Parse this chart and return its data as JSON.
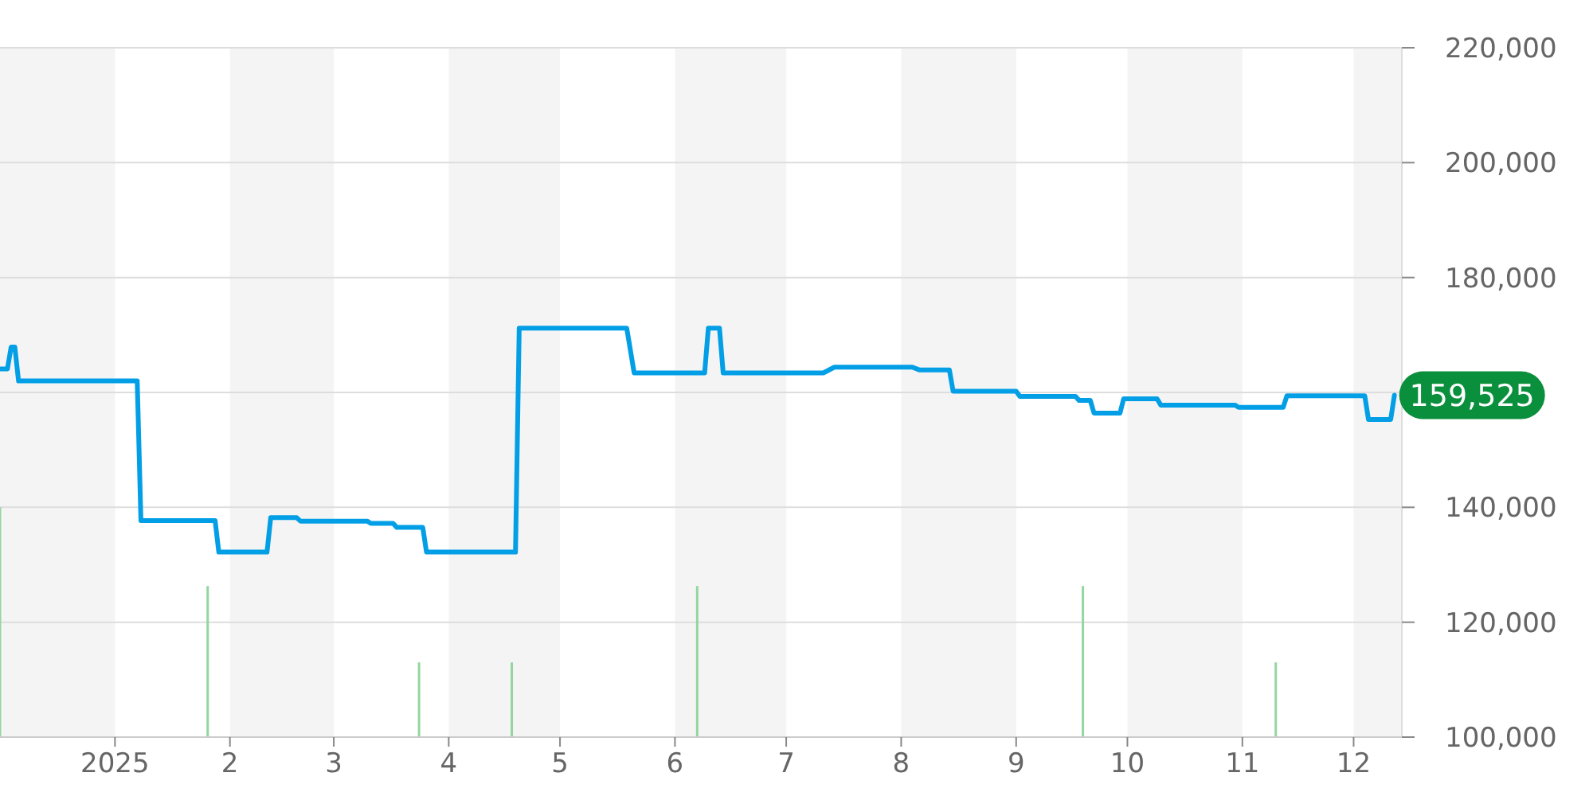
{
  "chart_data": {
    "type": "line",
    "xlim": [
      "2024-12-01",
      "2025-12-14"
    ],
    "ylim": [
      100000,
      220000
    ],
    "xticks": [
      {
        "value": "2025-01-01",
        "label": "2025"
      },
      {
        "value": "2025-02-01",
        "label": "2"
      },
      {
        "value": "2025-03-01",
        "label": "3"
      },
      {
        "value": "2025-04-01",
        "label": "4"
      },
      {
        "value": "2025-05-01",
        "label": "5"
      },
      {
        "value": "2025-06-01",
        "label": "6"
      },
      {
        "value": "2025-07-01",
        "label": "7"
      },
      {
        "value": "2025-08-01",
        "label": "8"
      },
      {
        "value": "2025-09-01",
        "label": "9"
      },
      {
        "value": "2025-10-01",
        "label": "10"
      },
      {
        "value": "2025-11-01",
        "label": "11"
      },
      {
        "value": "2025-12-01",
        "label": "12"
      }
    ],
    "yticks": [
      {
        "value": 100000,
        "label": "100,000"
      },
      {
        "value": 120000,
        "label": "120,000"
      },
      {
        "value": 140000,
        "label": "140,000"
      },
      {
        "value": 160000,
        "label": null
      },
      {
        "value": 180000,
        "label": "180,000"
      },
      {
        "value": 200000,
        "label": "200,000"
      },
      {
        "value": 220000,
        "label": "220,000"
      }
    ],
    "grid": "y",
    "marker": "none",
    "line_style": "solid",
    "bands": [
      {
        "axis": "x",
        "from": "2024-12-01",
        "to": "2025-01-01",
        "color": "#f4f4f4"
      },
      {
        "axis": "x",
        "from": "2025-02-01",
        "to": "2025-03-01",
        "color": "#f4f4f4"
      },
      {
        "axis": "x",
        "from": "2025-04-01",
        "to": "2025-05-01",
        "color": "#f4f4f4"
      },
      {
        "axis": "x",
        "from": "2025-06-01",
        "to": "2025-07-01",
        "color": "#f4f4f4"
      },
      {
        "axis": "x",
        "from": "2025-08-01",
        "to": "2025-09-01",
        "color": "#f4f4f4"
      },
      {
        "axis": "x",
        "from": "2025-10-01",
        "to": "2025-11-01",
        "color": "#f4f4f4"
      },
      {
        "axis": "x",
        "from": "2025-12-01",
        "to": "2025-12-14",
        "color": "#f4f4f4"
      }
    ],
    "series": [
      {
        "type": "bar",
        "color": "#93d6a0",
        "x": [
          "2024-12-01",
          "2025-01-26",
          "2025-03-24",
          "2025-04-18",
          "2025-06-07",
          "2025-09-19",
          "2025-11-10"
        ],
        "values": [
          140000,
          126300,
          113000,
          113000,
          126300,
          126300,
          113000
        ]
      },
      {
        "color": "#039fe6",
        "x": [
          "2024-12-01",
          "2024-12-03",
          "2024-12-04",
          "2024-12-05",
          "2024-12-06",
          "2025-01-07",
          "2025-01-08",
          "2025-01-28",
          "2025-01-29",
          "2025-02-11",
          "2025-02-12",
          "2025-02-19",
          "2025-02-20",
          "2025-03-10",
          "2025-03-11",
          "2025-03-17",
          "2025-03-18",
          "2025-03-25",
          "2025-03-26",
          "2025-04-19",
          "2025-04-20",
          "2025-05-19",
          "2025-05-21",
          "2025-06-09",
          "2025-06-10",
          "2025-06-13",
          "2025-06-14",
          "2025-07-11",
          "2025-07-14",
          "2025-08-04",
          "2025-08-06",
          "2025-08-14",
          "2025-08-15",
          "2025-09-01",
          "2025-09-02",
          "2025-09-17",
          "2025-09-18",
          "2025-09-21",
          "2025-09-22",
          "2025-09-29",
          "2025-09-30",
          "2025-10-09",
          "2025-10-10",
          "2025-10-30",
          "2025-10-31",
          "2025-11-12",
          "2025-11-13",
          "2025-12-04",
          "2025-12-05",
          "2025-12-11",
          "2025-12-12"
        ],
        "values": [
          164100,
          164100,
          167900,
          167900,
          162000,
          162000,
          137700,
          137700,
          132200,
          132200,
          138200,
          138200,
          137600,
          137600,
          137200,
          137200,
          136500,
          136500,
          132200,
          132200,
          171200,
          171200,
          163400,
          163400,
          171200,
          171200,
          163400,
          163400,
          164400,
          164400,
          163900,
          163900,
          160200,
          160200,
          159300,
          159300,
          158600,
          158600,
          156400,
          156400,
          158900,
          158900,
          157800,
          157800,
          157400,
          157400,
          159400,
          159400,
          155300,
          155300,
          159525
        ]
      }
    ],
    "annotations": [
      {
        "text": "159,525",
        "x": "2025-12-12",
        "y": 159525
      }
    ]
  }
}
